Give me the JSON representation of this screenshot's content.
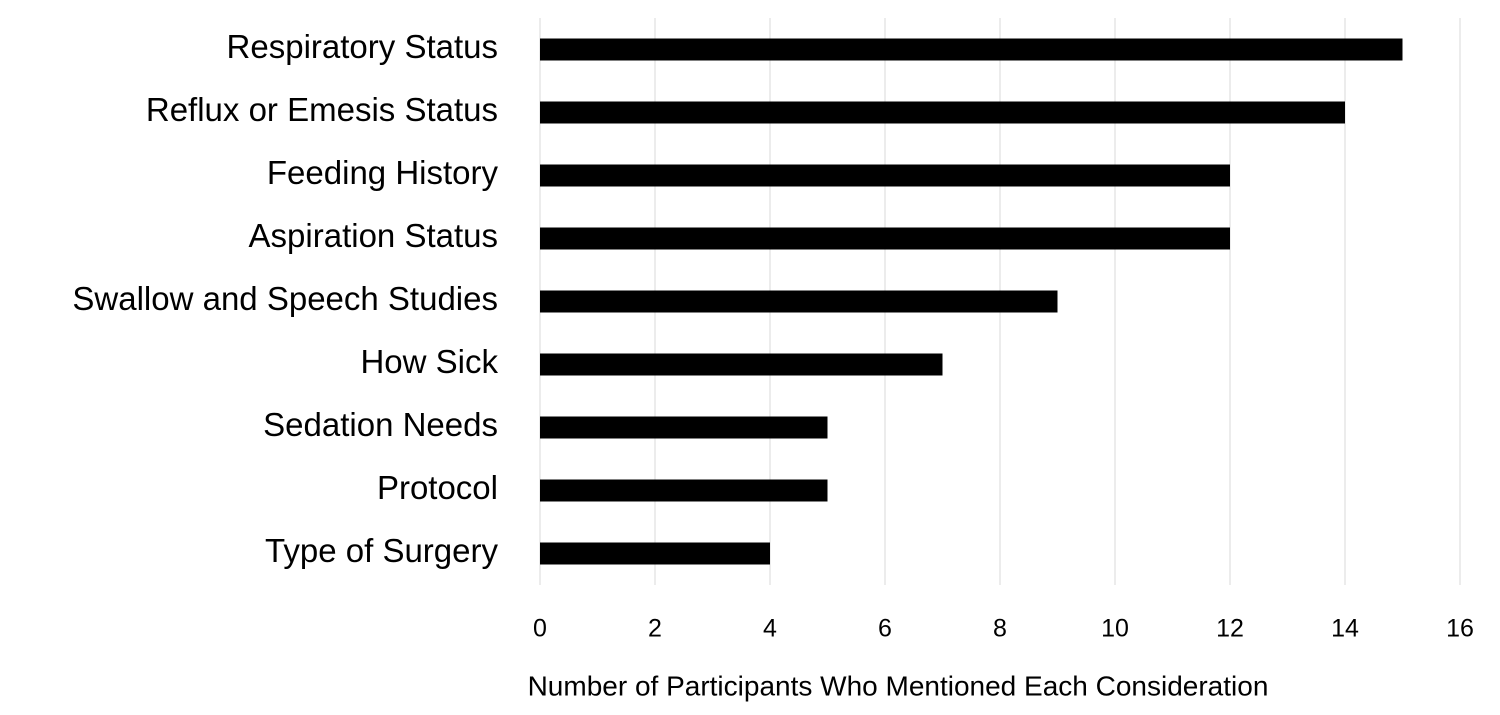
{
  "chart_data": {
    "type": "bar",
    "orientation": "horizontal",
    "x_label": "Number of Participants Who Mentioned Each Consideration",
    "categories": [
      "Respiratory Status",
      "Reflux or Emesis Status",
      "Feeding History",
      "Aspiration Status",
      "Swallow and Speech Studies",
      "How Sick",
      "Sedation Needs",
      "Protocol",
      "Type of Surgery"
    ],
    "values": [
      15,
      14,
      12,
      12,
      9,
      7,
      5,
      5,
      4
    ],
    "color": "#000000",
    "xlim": [
      0,
      16
    ],
    "xticks": [
      0,
      2,
      4,
      6,
      8,
      10,
      12,
      14,
      16
    ],
    "grid": true
  }
}
